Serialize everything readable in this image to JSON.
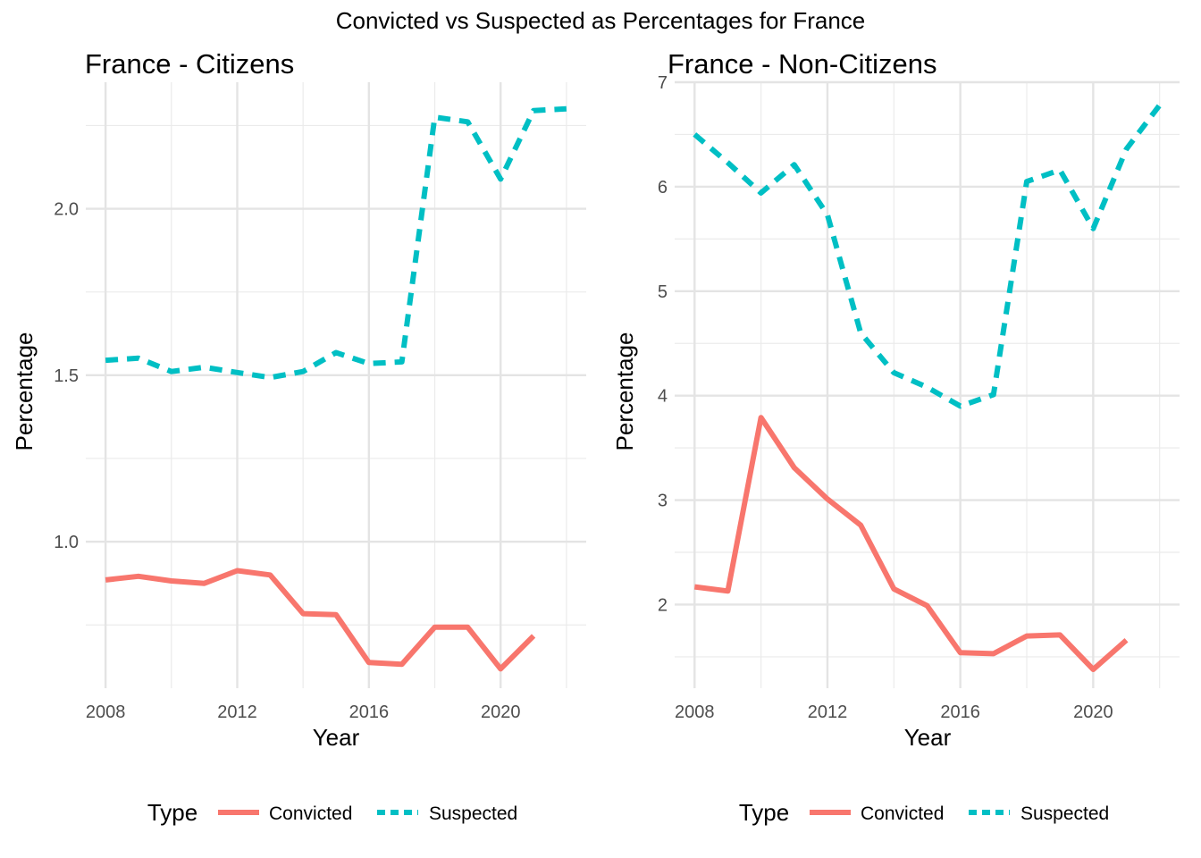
{
  "figure_title": "Convicted vs Suspected as Percentages for France",
  "chart_data": [
    {
      "type": "line",
      "title": "France - Citizens",
      "xlabel": "Year",
      "ylabel": "Percentage",
      "xlim": [
        2007.4,
        2022.6
      ],
      "ylim": [
        0.56,
        2.38
      ],
      "xticks": [
        2008,
        2012,
        2016,
        2020
      ],
      "yticks": [
        1.0,
        1.5,
        2.0
      ],
      "yticklabels": [
        "1.0",
        "1.5",
        "2.0"
      ],
      "grid": true,
      "x": [
        2008,
        2009,
        2010,
        2011,
        2012,
        2013,
        2014,
        2015,
        2016,
        2017,
        2018,
        2019,
        2020,
        2021,
        2022
      ],
      "series": [
        {
          "name": "Convicted",
          "color": "#F8766D",
          "dash": "solid",
          "x": [
            2008,
            2009,
            2010,
            2011,
            2012,
            2013,
            2014,
            2015,
            2016,
            2017,
            2018,
            2019,
            2020,
            2021
          ],
          "values": [
            0.885,
            0.896,
            0.882,
            0.875,
            0.913,
            0.9,
            0.784,
            0.781,
            0.637,
            0.632,
            0.743,
            0.743,
            0.618,
            0.717
          ]
        },
        {
          "name": "Suspected",
          "color": "#00BFC4",
          "dash": "dashed",
          "x": [
            2008,
            2009,
            2010,
            2011,
            2012,
            2013,
            2014,
            2015,
            2016,
            2017,
            2018,
            2019,
            2020,
            2021,
            2022
          ],
          "values": [
            1.545,
            1.551,
            1.511,
            1.524,
            1.508,
            1.493,
            1.511,
            1.568,
            1.535,
            1.54,
            2.275,
            2.261,
            2.089,
            2.295,
            2.3
          ]
        }
      ],
      "legend": {
        "title": "Type",
        "position": "bottom"
      }
    },
    {
      "type": "line",
      "title": "France - Non-Citizens",
      "xlabel": "Year",
      "ylabel": "Percentage",
      "xlim": [
        2007.4,
        2022.6
      ],
      "ylim": [
        1.2,
        7.0
      ],
      "xticks": [
        2008,
        2012,
        2016,
        2020
      ],
      "yticks": [
        2,
        3,
        4,
        5,
        6,
        7
      ],
      "yticklabels": [
        "2",
        "3",
        "4",
        "5",
        "6",
        "7"
      ],
      "grid": true,
      "x": [
        2008,
        2009,
        2010,
        2011,
        2012,
        2013,
        2014,
        2015,
        2016,
        2017,
        2018,
        2019,
        2020,
        2021,
        2022
      ],
      "series": [
        {
          "name": "Convicted",
          "color": "#F8766D",
          "dash": "solid",
          "x": [
            2008,
            2009,
            2010,
            2011,
            2012,
            2013,
            2014,
            2015,
            2016,
            2017,
            2018,
            2019,
            2020,
            2021
          ],
          "values": [
            2.17,
            2.13,
            3.79,
            3.31,
            3.01,
            2.76,
            2.15,
            1.99,
            1.54,
            1.53,
            1.7,
            1.71,
            1.38,
            1.66
          ]
        },
        {
          "name": "Suspected",
          "color": "#00BFC4",
          "dash": "dashed",
          "x": [
            2008,
            2009,
            2010,
            2011,
            2012,
            2013,
            2014,
            2015,
            2016,
            2017,
            2018,
            2019,
            2020,
            2021,
            2022
          ],
          "values": [
            6.5,
            6.23,
            5.94,
            6.21,
            5.73,
            4.6,
            4.22,
            4.08,
            3.9,
            4.01,
            6.05,
            6.16,
            5.6,
            6.36,
            6.78
          ]
        }
      ],
      "legend": {
        "title": "Type",
        "position": "bottom"
      }
    }
  ]
}
